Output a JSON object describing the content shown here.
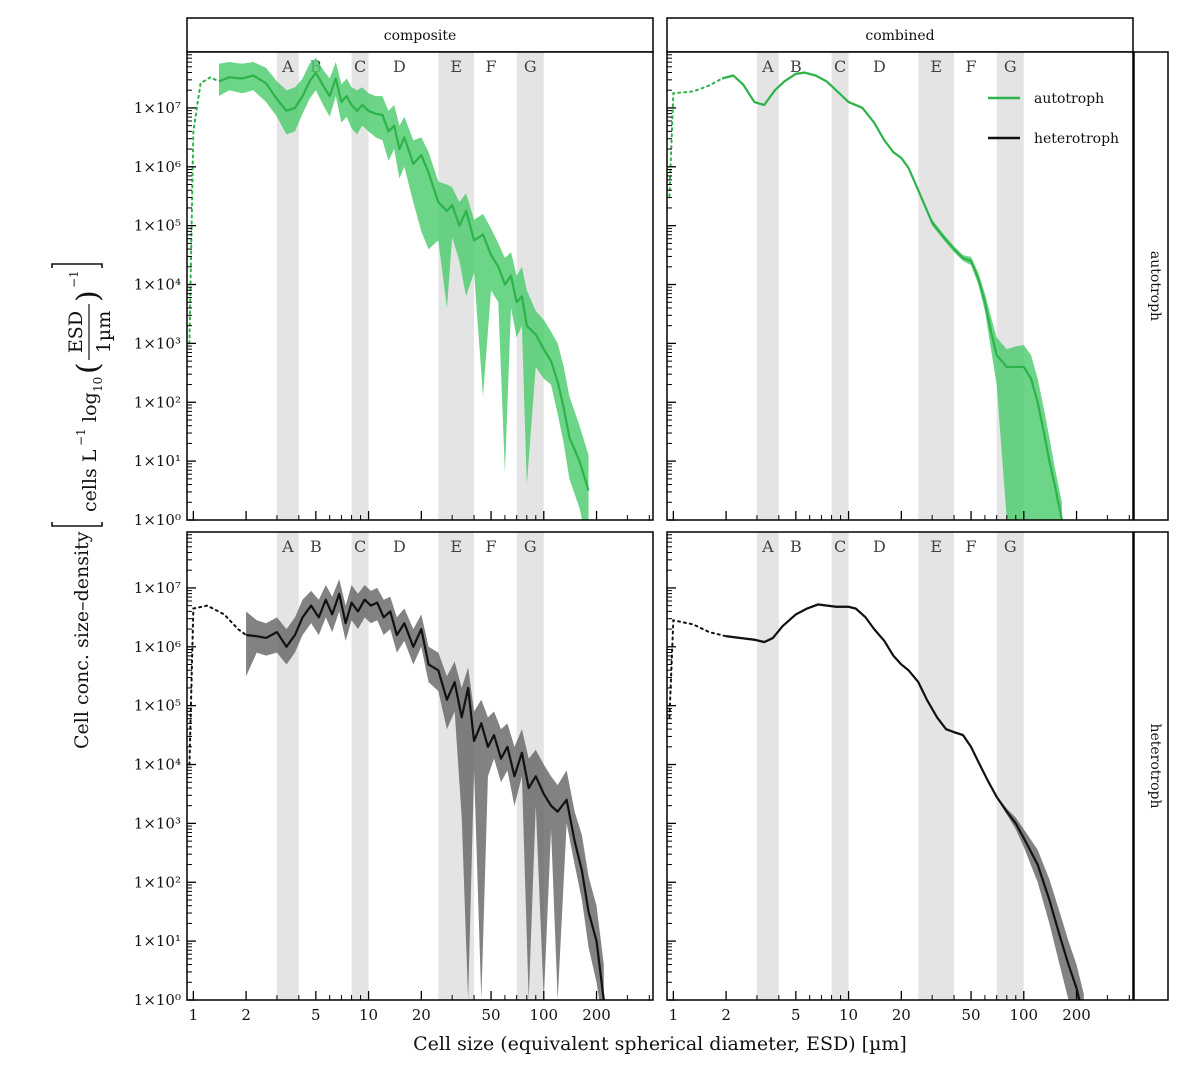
{
  "figure": {
    "x_title": "Cell size (equivalent spherical diameter, ESD) [µm]",
    "y_title": "Cell conc. size–density",
    "y_unit_part1": "cells L",
    "y_unit_exp1": "−1",
    "y_unit_log": "log",
    "y_unit_log_sub": "10",
    "y_unit_frac_num": "ESD",
    "y_unit_frac_den": "1µm",
    "y_unit_exp2": "−1",
    "column_strips": [
      "composite",
      "combined"
    ],
    "row_strips": [
      "autotroph",
      "heterotroph"
    ],
    "legend": [
      {
        "label": "autotroph",
        "color": "#2db34a"
      },
      {
        "label": "heterotroph",
        "color": "#111111"
      }
    ]
  },
  "chart_data": {
    "type": "area",
    "x_scale": "log",
    "xlim": [
      0.92,
      420
    ],
    "x_ticks": [
      1,
      2,
      5,
      10,
      20,
      50,
      100,
      200
    ],
    "x_tick_labels": [
      "1",
      "2",
      "5",
      "10",
      "20",
      "50",
      "100",
      "200"
    ],
    "y_scale": "log",
    "ylim_log10": [
      0,
      7.95
    ],
    "y_ticks_log10": [
      0,
      1,
      2,
      3,
      4,
      5,
      6,
      7
    ],
    "y_tick_labels": [
      "1×10⁰",
      "1×10¹",
      "1×10²",
      "1×10³",
      "1×10⁴",
      "1×10⁵",
      "1×10⁶",
      "1×10⁷"
    ],
    "size_bands": [
      {
        "label": "A",
        "range": [
          3,
          4
        ]
      },
      {
        "label": "B",
        "range": [
          5,
          5
        ]
      },
      {
        "label": "C",
        "range": [
          8,
          10
        ]
      },
      {
        "label": "D",
        "range": [
          15,
          15
        ]
      },
      {
        "label": "E",
        "range": [
          25,
          40
        ]
      },
      {
        "label": "F",
        "range": [
          50,
          50
        ]
      },
      {
        "label": "G",
        "range": [
          70,
          100
        ]
      }
    ],
    "panels": [
      {
        "id": "composite-autotroph",
        "column": "composite",
        "row": "autotroph",
        "color": "#2db34a",
        "fill": "#4ccc6c",
        "dotted": {
          "x": [
            0.95,
            1.0,
            1.1,
            1.25,
            1.4
          ],
          "y": [
            3.0,
            6.6,
            7.42,
            7.52,
            7.45
          ]
        },
        "x": [
          1.4,
          1.6,
          1.9,
          2.2,
          2.6,
          3.0,
          3.4,
          3.8,
          4.2,
          4.6,
          5.0,
          5.5,
          6.0,
          6.5,
          7.0,
          7.5,
          8.0,
          8.6,
          9.2,
          10,
          11,
          12,
          13,
          14,
          15,
          16,
          18,
          20,
          22,
          25,
          28,
          30,
          33,
          36,
          40,
          45,
          50,
          55,
          60,
          65,
          70,
          75,
          80,
          90,
          100,
          110,
          120,
          130,
          140,
          160,
          180
        ],
        "y": [
          7.45,
          7.52,
          7.5,
          7.55,
          7.42,
          7.15,
          6.95,
          7.0,
          7.2,
          7.45,
          7.6,
          7.38,
          7.2,
          7.5,
          7.1,
          7.2,
          7.05,
          6.95,
          7.05,
          6.95,
          6.9,
          6.88,
          6.6,
          6.7,
          6.3,
          6.5,
          6.05,
          6.2,
          5.9,
          5.4,
          5.25,
          5.35,
          5.0,
          5.25,
          4.75,
          4.85,
          4.5,
          4.3,
          4.0,
          4.15,
          3.7,
          3.8,
          3.3,
          3.15,
          2.9,
          2.7,
          2.35,
          1.9,
          1.4,
          1.0,
          0.5
        ],
        "lower": [
          7.2,
          7.3,
          7.25,
          7.3,
          7.1,
          6.85,
          6.55,
          6.6,
          6.9,
          7.15,
          7.3,
          7.05,
          6.85,
          7.2,
          6.75,
          6.85,
          6.65,
          6.55,
          6.7,
          6.6,
          6.5,
          6.45,
          6.1,
          6.3,
          5.8,
          6.0,
          5.4,
          4.9,
          4.6,
          4.75,
          3.6,
          4.8,
          4.4,
          3.8,
          4.2,
          2.1,
          3.9,
          3.7,
          0.8,
          3.6,
          3.1,
          3.3,
          0.6,
          2.6,
          2.4,
          2.3,
          1.8,
          1.3,
          0.7,
          0.2,
          -0.5
        ],
        "upper": [
          7.75,
          7.78,
          7.75,
          7.78,
          7.68,
          7.45,
          7.3,
          7.35,
          7.5,
          7.75,
          7.85,
          7.65,
          7.5,
          7.78,
          7.4,
          7.5,
          7.35,
          7.3,
          7.35,
          7.25,
          7.2,
          7.2,
          6.95,
          7.05,
          6.7,
          6.85,
          6.45,
          6.5,
          6.25,
          5.75,
          5.7,
          5.65,
          5.4,
          5.55,
          5.1,
          5.2,
          4.95,
          4.7,
          4.45,
          4.55,
          4.15,
          4.3,
          3.9,
          3.55,
          3.4,
          3.2,
          3.0,
          2.6,
          2.1,
          1.6,
          1.1
        ]
      },
      {
        "id": "combined-autotroph",
        "column": "combined",
        "row": "autotroph",
        "color": "#2db34a",
        "fill": "#4ccc6c",
        "dotted": {
          "x": [
            0.95,
            1.0,
            1.3,
            1.6,
            1.9
          ],
          "y": [
            5.5,
            7.25,
            7.28,
            7.38,
            7.5
          ]
        },
        "x": [
          1.9,
          2.2,
          2.5,
          2.9,
          3.3,
          3.8,
          4.3,
          5.0,
          5.6,
          6.5,
          7.5,
          8.5,
          10,
          12,
          14,
          16,
          18,
          20,
          22,
          25,
          30,
          35,
          40,
          45,
          50,
          55,
          60,
          65,
          70,
          80,
          90,
          100,
          110,
          120,
          130,
          140,
          150,
          165
        ],
        "y": [
          7.5,
          7.55,
          7.4,
          7.1,
          7.05,
          7.3,
          7.45,
          7.58,
          7.6,
          7.55,
          7.45,
          7.3,
          7.1,
          7.0,
          6.75,
          6.45,
          6.25,
          6.15,
          5.98,
          5.6,
          5.05,
          4.8,
          4.6,
          4.45,
          4.4,
          4.1,
          3.7,
          3.2,
          2.8,
          2.6,
          2.6,
          2.6,
          2.4,
          2.0,
          1.5,
          1.0,
          0.6,
          0.0
        ],
        "lower": [
          7.48,
          7.53,
          7.38,
          7.08,
          7.03,
          7.28,
          7.43,
          7.56,
          7.58,
          7.53,
          7.43,
          7.28,
          7.08,
          6.98,
          6.73,
          6.43,
          6.23,
          6.13,
          5.95,
          5.57,
          5.0,
          4.75,
          4.55,
          4.4,
          4.33,
          4.0,
          3.55,
          2.9,
          2.3,
          0.0,
          -0.5,
          -0.5,
          -0.5,
          -0.5,
          -0.5,
          -0.5,
          -0.5,
          -0.5
        ],
        "upper": [
          7.52,
          7.57,
          7.42,
          7.12,
          7.07,
          7.32,
          7.47,
          7.6,
          7.62,
          7.57,
          7.47,
          7.32,
          7.12,
          7.02,
          6.77,
          6.47,
          6.27,
          6.17,
          6.01,
          5.63,
          5.1,
          4.85,
          4.65,
          4.5,
          4.47,
          4.2,
          3.85,
          3.45,
          3.1,
          2.9,
          2.95,
          2.97,
          2.8,
          2.4,
          1.9,
          1.4,
          0.9,
          0.3
        ]
      },
      {
        "id": "composite-heterotroph",
        "column": "composite",
        "row": "heterotroph",
        "color": "#111111",
        "fill": "#666666",
        "dotted": {
          "x": [
            0.95,
            1.0,
            1.2,
            1.5,
            1.8,
            2.0
          ],
          "y": [
            4.0,
            6.65,
            6.7,
            6.55,
            6.3,
            6.2
          ]
        },
        "x": [
          2.0,
          2.3,
          2.6,
          3.0,
          3.4,
          3.8,
          4.2,
          4.7,
          5.2,
          5.7,
          6.2,
          6.8,
          7.4,
          8.0,
          8.7,
          9.5,
          10.3,
          11.2,
          12.2,
          13.3,
          14.5,
          16,
          18,
          20,
          22,
          25,
          28,
          31,
          34,
          37,
          40,
          44,
          48,
          52,
          57,
          62,
          68,
          75,
          82,
          90,
          100,
          110,
          120,
          135,
          150,
          165,
          180,
          200,
          220
        ],
        "y": [
          6.2,
          6.18,
          6.15,
          6.25,
          6.0,
          6.2,
          6.5,
          6.7,
          6.5,
          6.8,
          6.55,
          6.9,
          6.4,
          6.75,
          6.6,
          6.8,
          6.7,
          6.75,
          6.5,
          6.6,
          6.2,
          6.4,
          6.0,
          6.3,
          5.7,
          5.6,
          5.1,
          5.4,
          4.8,
          5.3,
          4.4,
          4.7,
          4.3,
          4.5,
          4.1,
          4.3,
          3.8,
          4.2,
          3.6,
          3.8,
          3.5,
          3.3,
          3.2,
          3.4,
          2.7,
          2.2,
          1.5,
          1.0,
          0.0
        ],
        "lower": [
          5.5,
          5.9,
          5.85,
          5.9,
          5.7,
          5.9,
          6.2,
          6.4,
          6.2,
          6.5,
          6.25,
          6.6,
          6.1,
          6.45,
          6.3,
          6.5,
          6.4,
          6.45,
          6.2,
          6.3,
          5.9,
          6.1,
          5.7,
          6.0,
          5.4,
          5.25,
          4.6,
          4.9,
          3.1,
          0.0,
          3.9,
          0.0,
          3.8,
          4.1,
          3.7,
          3.9,
          3.3,
          3.8,
          0.0,
          3.3,
          0.0,
          2.9,
          0.0,
          3.0,
          2.3,
          1.7,
          0.9,
          0.3,
          -0.5
        ],
        "upper": [
          6.6,
          6.45,
          6.4,
          6.5,
          6.3,
          6.5,
          6.8,
          6.95,
          6.8,
          7.05,
          6.85,
          7.15,
          6.7,
          7.05,
          6.9,
          7.05,
          6.95,
          7.0,
          6.8,
          6.85,
          6.5,
          6.65,
          6.3,
          6.55,
          6.0,
          5.9,
          5.5,
          5.75,
          5.3,
          5.65,
          4.9,
          5.1,
          4.8,
          4.9,
          4.6,
          4.7,
          4.3,
          4.6,
          4.1,
          4.25,
          4.0,
          3.8,
          3.65,
          3.9,
          3.2,
          2.8,
          2.1,
          1.6,
          0.6
        ]
      },
      {
        "id": "combined-heterotroph",
        "column": "combined",
        "row": "heterotroph",
        "color": "#111111",
        "fill": "#666666",
        "dotted": {
          "x": [
            0.95,
            1.0,
            1.3,
            1.6,
            2.0
          ],
          "y": [
            4.8,
            6.45,
            6.38,
            6.25,
            6.18
          ]
        },
        "x": [
          2.0,
          2.4,
          2.9,
          3.3,
          3.7,
          4.2,
          5.0,
          5.8,
          6.7,
          7.5,
          8.5,
          10,
          11,
          12.5,
          14,
          16,
          18,
          20,
          22,
          25,
          28,
          32,
          36,
          40,
          45,
          50,
          56,
          63,
          70,
          80,
          90,
          100,
          120,
          140,
          160,
          180,
          200,
          220
        ],
        "y": [
          6.18,
          6.15,
          6.12,
          6.08,
          6.15,
          6.35,
          6.55,
          6.65,
          6.72,
          6.7,
          6.68,
          6.68,
          6.65,
          6.5,
          6.3,
          6.1,
          5.85,
          5.7,
          5.6,
          5.4,
          5.1,
          4.8,
          4.6,
          4.55,
          4.5,
          4.3,
          4.0,
          3.7,
          3.45,
          3.2,
          3.0,
          2.75,
          2.3,
          1.7,
          1.1,
          0.6,
          0.2,
          -0.3
        ],
        "lower": [
          6.16,
          6.13,
          6.1,
          6.06,
          6.13,
          6.33,
          6.53,
          6.63,
          6.7,
          6.68,
          6.66,
          6.66,
          6.63,
          6.48,
          6.28,
          6.08,
          5.83,
          5.68,
          5.58,
          5.38,
          5.08,
          4.78,
          4.58,
          4.53,
          4.48,
          4.28,
          3.98,
          3.68,
          3.43,
          3.15,
          2.9,
          2.6,
          2.0,
          1.3,
          0.6,
          0.0,
          -0.5,
          -0.5
        ],
        "upper": [
          6.2,
          6.17,
          6.14,
          6.1,
          6.17,
          6.37,
          6.57,
          6.67,
          6.74,
          6.72,
          6.7,
          6.7,
          6.67,
          6.52,
          6.32,
          6.12,
          5.87,
          5.72,
          5.62,
          5.42,
          5.12,
          4.82,
          4.62,
          4.57,
          4.52,
          4.32,
          4.02,
          3.72,
          3.47,
          3.25,
          3.1,
          2.9,
          2.55,
          2.05,
          1.5,
          1.0,
          0.6,
          0.1
        ]
      }
    ]
  }
}
